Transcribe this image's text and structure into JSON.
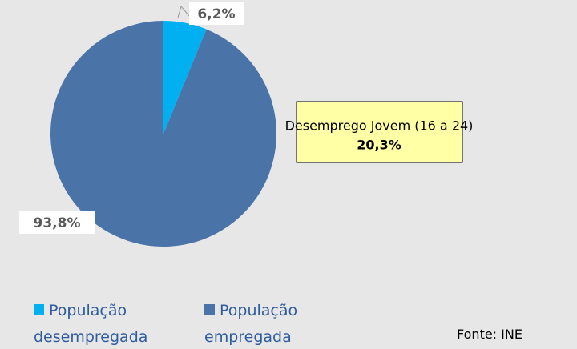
{
  "chart_data": {
    "type": "pie",
    "categories": [
      "População desempregada",
      "População empregada"
    ],
    "values": [
      6.2,
      93.8
    ],
    "value_labels": [
      "6,2%",
      "93,8%"
    ],
    "colors": [
      "#00b0f0",
      "#4a74a8"
    ],
    "annotation": {
      "title": "Desemprego Jovem (16 a 24)",
      "value": "20,3%"
    },
    "source": "Fonte: INE"
  }
}
